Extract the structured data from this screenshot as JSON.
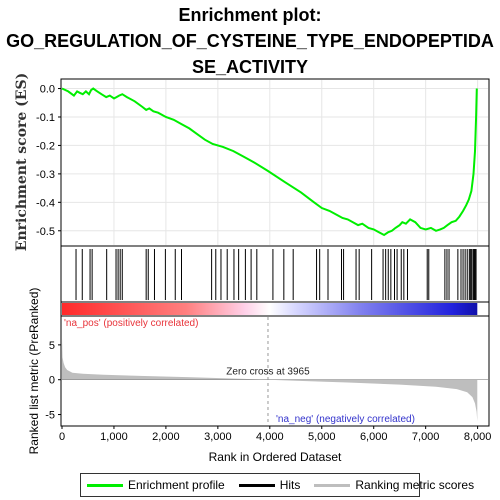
{
  "title_lines": [
    "Enrichment plot:",
    "GO_REGULATION_OF_CYSTEINE_TYPE_ENDOPEPTIDA",
    "SE_ACTIVITY"
  ],
  "colors": {
    "enrichment": "#00ee00",
    "hits": "#000000",
    "ranking": "#bebebe",
    "pos": "#ff2a2a",
    "neg": "#2222dd",
    "mid": "#ffffff"
  },
  "legend": {
    "enrichment_label": "Enrichment profile",
    "hits_label": "Hits",
    "ranking_label": "Ranking metric scores"
  },
  "chart_data": [
    {
      "type": "line",
      "name": "enrichment-profile",
      "ylabel": "Enrichment score (ES)",
      "ylim": [
        -0.55,
        0.03
      ],
      "yticks": [
        0.0,
        -0.1,
        -0.2,
        -0.3,
        -0.4,
        -0.5
      ],
      "xlim": [
        0,
        8200
      ],
      "grid": true,
      "points": [
        [
          0,
          0.0
        ],
        [
          120,
          -0.01
        ],
        [
          230,
          -0.025
        ],
        [
          290,
          -0.01
        ],
        [
          340,
          -0.015
        ],
        [
          400,
          -0.02
        ],
        [
          460,
          -0.01
        ],
        [
          520,
          -0.02
        ],
        [
          560,
          -0.005
        ],
        [
          600,
          0.0
        ],
        [
          680,
          -0.01
        ],
        [
          760,
          -0.02
        ],
        [
          850,
          -0.03
        ],
        [
          920,
          -0.025
        ],
        [
          1000,
          -0.035
        ],
        [
          1050,
          -0.03
        ],
        [
          1100,
          -0.025
        ],
        [
          1160,
          -0.02
        ],
        [
          1250,
          -0.03
        ],
        [
          1400,
          -0.045
        ],
        [
          1550,
          -0.065
        ],
        [
          1620,
          -0.075
        ],
        [
          1680,
          -0.07
        ],
        [
          1760,
          -0.08
        ],
        [
          1850,
          -0.085
        ],
        [
          2000,
          -0.1
        ],
        [
          2150,
          -0.11
        ],
        [
          2300,
          -0.125
        ],
        [
          2450,
          -0.14
        ],
        [
          2600,
          -0.16
        ],
        [
          2750,
          -0.18
        ],
        [
          2900,
          -0.195
        ],
        [
          3100,
          -0.205
        ],
        [
          3300,
          -0.22
        ],
        [
          3500,
          -0.24
        ],
        [
          3700,
          -0.26
        ],
        [
          3965,
          -0.29
        ],
        [
          4300,
          -0.33
        ],
        [
          4600,
          -0.365
        ],
        [
          4850,
          -0.4
        ],
        [
          5000,
          -0.42
        ],
        [
          5150,
          -0.43
        ],
        [
          5300,
          -0.445
        ],
        [
          5400,
          -0.455
        ],
        [
          5500,
          -0.46
        ],
        [
          5600,
          -0.47
        ],
        [
          5700,
          -0.48
        ],
        [
          5780,
          -0.475
        ],
        [
          5900,
          -0.49
        ],
        [
          6000,
          -0.495
        ],
        [
          6100,
          -0.505
        ],
        [
          6200,
          -0.515
        ],
        [
          6280,
          -0.505
        ],
        [
          6350,
          -0.5
        ],
        [
          6420,
          -0.49
        ],
        [
          6500,
          -0.48
        ],
        [
          6550,
          -0.47
        ],
        [
          6620,
          -0.475
        ],
        [
          6700,
          -0.46
        ],
        [
          6800,
          -0.47
        ],
        [
          6900,
          -0.49
        ],
        [
          7000,
          -0.495
        ],
        [
          7100,
          -0.49
        ],
        [
          7200,
          -0.5
        ],
        [
          7280,
          -0.495
        ],
        [
          7350,
          -0.49
        ],
        [
          7420,
          -0.48
        ],
        [
          7500,
          -0.47
        ],
        [
          7580,
          -0.465
        ],
        [
          7650,
          -0.45
        ],
        [
          7720,
          -0.43
        ],
        [
          7780,
          -0.41
        ],
        [
          7830,
          -0.39
        ],
        [
          7880,
          -0.36
        ],
        [
          7920,
          -0.3
        ],
        [
          7950,
          -0.22
        ],
        [
          7970,
          -0.1
        ],
        [
          7985,
          0.0
        ]
      ]
    },
    {
      "type": "bar",
      "name": "hits",
      "positions": [
        270,
        390,
        540,
        580,
        860,
        1040,
        1080,
        1120,
        1160,
        1620,
        1660,
        1780,
        1990,
        2180,
        2300,
        2880,
        2960,
        3060,
        3180,
        3310,
        3400,
        3530,
        3640,
        3750,
        4060,
        4270,
        4450,
        4900,
        4960,
        5120,
        5380,
        5420,
        5660,
        5720,
        5960,
        6180,
        6230,
        6280,
        6330,
        6400,
        6450,
        6530,
        6580,
        6650,
        7030,
        7060,
        7370,
        7410,
        7450,
        7620,
        7680,
        7720,
        7760,
        7800,
        7840,
        7860,
        7880,
        7910,
        7930,
        7950,
        7970
      ]
    },
    {
      "type": "area",
      "name": "ranked-list-metric",
      "xlabel": "Rank in Ordered Dataset",
      "ylabel": "Ranked list metric (PreRanked)",
      "ylim": [
        -6.5,
        9
      ],
      "yticks": [
        5,
        0,
        -5
      ],
      "xticks": [
        0,
        1000,
        2000,
        3000,
        4000,
        5000,
        6000,
        7000,
        8000
      ],
      "xlim": [
        0,
        8200
      ],
      "zero_cross_label": "Zero cross at 3965",
      "zero_cross": 3965,
      "pos_label": "'na_pos' (positively correlated)",
      "neg_label": "'na_neg' (negatively correlated)",
      "points": [
        [
          0,
          6.0
        ],
        [
          10,
          3.2
        ],
        [
          30,
          2.4
        ],
        [
          60,
          1.8
        ],
        [
          100,
          1.4
        ],
        [
          200,
          1.0
        ],
        [
          400,
          0.85
        ],
        [
          800,
          0.7
        ],
        [
          1500,
          0.55
        ],
        [
          2500,
          0.35
        ],
        [
          3500,
          0.12
        ],
        [
          3965,
          0.0
        ],
        [
          4500,
          -0.15
        ],
        [
          5500,
          -0.4
        ],
        [
          6500,
          -0.7
        ],
        [
          7200,
          -1.0
        ],
        [
          7600,
          -1.35
        ],
        [
          7800,
          -1.8
        ],
        [
          7900,
          -2.5
        ],
        [
          7950,
          -3.4
        ],
        [
          7980,
          -4.6
        ],
        [
          7995,
          -6.0
        ]
      ]
    }
  ]
}
